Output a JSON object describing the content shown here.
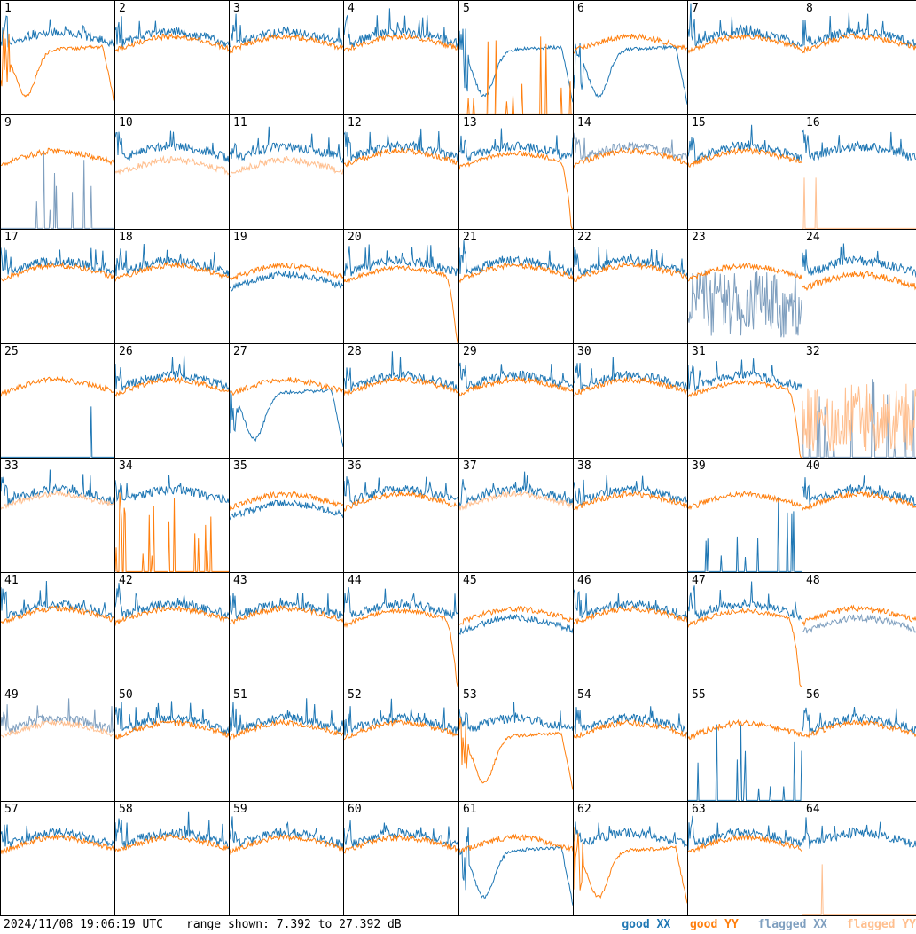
{
  "footer": {
    "timestamp": "2024/11/08 19:06:19 UTC",
    "range_text": "range shown: 7.392 to 27.392 dB"
  },
  "colors": {
    "good_xx": "#1f77b4",
    "good_yy": "#ff7f0e",
    "flagged_xx": "#7f9fbf",
    "flagged_yy": "#ffbf8f"
  },
  "chart_data": {
    "type": "line",
    "layout": "small-multiples 8x8",
    "ylim": [
      7.392,
      27.392
    ],
    "y_unit": "dB",
    "legend": [
      {
        "name": "good XX",
        "color": "#1f77b4"
      },
      {
        "name": "good YY",
        "color": "#ff7f0e"
      },
      {
        "name": "flagged XX",
        "color": "#7f9fbf"
      },
      {
        "name": "flagged YY",
        "color": "#ffbf8f"
      }
    ],
    "legend_position": "bottom-right",
    "panels": [
      {
        "id": "1",
        "xx": "good",
        "yy": "good",
        "xx_shape": "normal",
        "yy_shape": "dip"
      },
      {
        "id": "2",
        "xx": "good",
        "yy": "good"
      },
      {
        "id": "3",
        "xx": "good",
        "yy": "good"
      },
      {
        "id": "4",
        "xx": "good",
        "yy": "good"
      },
      {
        "id": "5",
        "xx": "good",
        "yy": "good",
        "xx_shape": "dip",
        "yy_shape": "spikes"
      },
      {
        "id": "6",
        "xx": "good",
        "yy": "good",
        "xx_shape": "dip"
      },
      {
        "id": "7",
        "xx": "good",
        "yy": "good"
      },
      {
        "id": "8",
        "xx": "good",
        "yy": "good"
      },
      {
        "id": "9",
        "xx": "flagged",
        "yy": "good",
        "xx_shape": "spikes"
      },
      {
        "id": "10",
        "xx": "good",
        "yy": "flagged",
        "yy_shape": "low"
      },
      {
        "id": "11",
        "xx": "good",
        "yy": "flagged",
        "yy_shape": "low"
      },
      {
        "id": "12",
        "xx": "good",
        "yy": "good"
      },
      {
        "id": "13",
        "xx": "good",
        "yy": "good",
        "yy_shape": "falloff"
      },
      {
        "id": "14",
        "xx": "flagged",
        "yy": "good"
      },
      {
        "id": "15",
        "xx": "good",
        "yy": "good"
      },
      {
        "id": "16",
        "xx": "good",
        "yy": "flagged",
        "yy_shape": "zero"
      },
      {
        "id": "17",
        "xx": "good",
        "yy": "good"
      },
      {
        "id": "18",
        "xx": "good",
        "yy": "good"
      },
      {
        "id": "19",
        "xx": "good",
        "yy": "good",
        "xx_shape": "low"
      },
      {
        "id": "20",
        "xx": "good",
        "yy": "good",
        "yy_shape": "falloff"
      },
      {
        "id": "21",
        "xx": "good",
        "yy": "good"
      },
      {
        "id": "22",
        "xx": "good",
        "yy": "good"
      },
      {
        "id": "23",
        "xx": "flagged",
        "yy": "good",
        "xx_shape": "noise"
      },
      {
        "id": "24",
        "xx": "good",
        "yy": "good",
        "yy_shape": "low"
      },
      {
        "id": "25",
        "xx": "good",
        "yy": "good",
        "xx_shape": "zero"
      },
      {
        "id": "26",
        "xx": "good",
        "yy": "good"
      },
      {
        "id": "27",
        "xx": "good",
        "yy": "good",
        "xx_shape": "dip"
      },
      {
        "id": "28",
        "xx": "good",
        "yy": "good"
      },
      {
        "id": "29",
        "xx": "good",
        "yy": "good"
      },
      {
        "id": "30",
        "xx": "good",
        "yy": "good"
      },
      {
        "id": "31",
        "xx": "good",
        "yy": "good",
        "yy_shape": "falloff"
      },
      {
        "id": "32",
        "xx": "flagged",
        "yy": "flagged",
        "xx_shape": "spikes",
        "yy_shape": "noise"
      },
      {
        "id": "33",
        "xx": "good",
        "yy": "flagged"
      },
      {
        "id": "34",
        "xx": "good",
        "yy": "good",
        "yy_shape": "spikes"
      },
      {
        "id": "35",
        "xx": "good",
        "yy": "good",
        "xx_shape": "low"
      },
      {
        "id": "36",
        "xx": "good",
        "yy": "good"
      },
      {
        "id": "37",
        "xx": "good",
        "yy": "flagged"
      },
      {
        "id": "38",
        "xx": "good",
        "yy": "good"
      },
      {
        "id": "39",
        "xx": "good",
        "yy": "good",
        "xx_shape": "spikes"
      },
      {
        "id": "40",
        "xx": "good",
        "yy": "good"
      },
      {
        "id": "41",
        "xx": "good",
        "yy": "good"
      },
      {
        "id": "42",
        "xx": "good",
        "yy": "good"
      },
      {
        "id": "43",
        "xx": "good",
        "yy": "good"
      },
      {
        "id": "44",
        "xx": "good",
        "yy": "good",
        "yy_shape": "falloff"
      },
      {
        "id": "45",
        "xx": "good",
        "yy": "good",
        "xx_shape": "low"
      },
      {
        "id": "46",
        "xx": "good",
        "yy": "good"
      },
      {
        "id": "47",
        "xx": "good",
        "yy": "good",
        "yy_shape": "falloff"
      },
      {
        "id": "48",
        "xx": "flagged",
        "yy": "good",
        "xx_shape": "low"
      },
      {
        "id": "49",
        "xx": "flagged",
        "yy": "flagged"
      },
      {
        "id": "50",
        "xx": "good",
        "yy": "good"
      },
      {
        "id": "51",
        "xx": "good",
        "yy": "good"
      },
      {
        "id": "52",
        "xx": "good",
        "yy": "good"
      },
      {
        "id": "53",
        "xx": "good",
        "yy": "good",
        "yy_shape": "dip"
      },
      {
        "id": "54",
        "xx": "good",
        "yy": "good"
      },
      {
        "id": "55",
        "xx": "good",
        "yy": "good",
        "xx_shape": "spikes"
      },
      {
        "id": "56",
        "xx": "good",
        "yy": "good"
      },
      {
        "id": "57",
        "xx": "good",
        "yy": "good"
      },
      {
        "id": "58",
        "xx": "good",
        "yy": "good"
      },
      {
        "id": "59",
        "xx": "good",
        "yy": "good"
      },
      {
        "id": "60",
        "xx": "good",
        "yy": "good"
      },
      {
        "id": "61",
        "xx": "good",
        "yy": "good",
        "xx_shape": "dip"
      },
      {
        "id": "62",
        "xx": "good",
        "yy": "good",
        "yy_shape": "dip"
      },
      {
        "id": "63",
        "xx": "good",
        "yy": "good"
      },
      {
        "id": "64",
        "xx": "good",
        "yy": "flagged",
        "yy_shape": "zero"
      }
    ]
  }
}
